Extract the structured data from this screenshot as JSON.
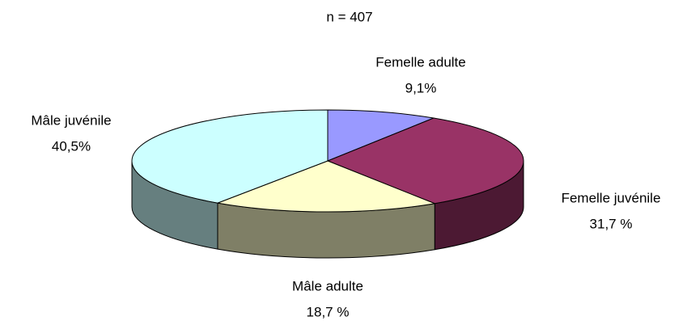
{
  "chart_data": {
    "type": "pie3d",
    "title": "n = 407",
    "categories": [
      "Femelle adulte",
      "Femelle juvénile",
      "Mâle adulte",
      "Mâle juvénile"
    ],
    "values": [
      9.1,
      31.7,
      18.7,
      40.5
    ],
    "value_labels": [
      "9,1%",
      "31,7 %",
      "18,7 %",
      "40,5%"
    ],
    "colors": [
      "#9999ff",
      "#993366",
      "#ffffcc",
      "#ccffff"
    ]
  }
}
